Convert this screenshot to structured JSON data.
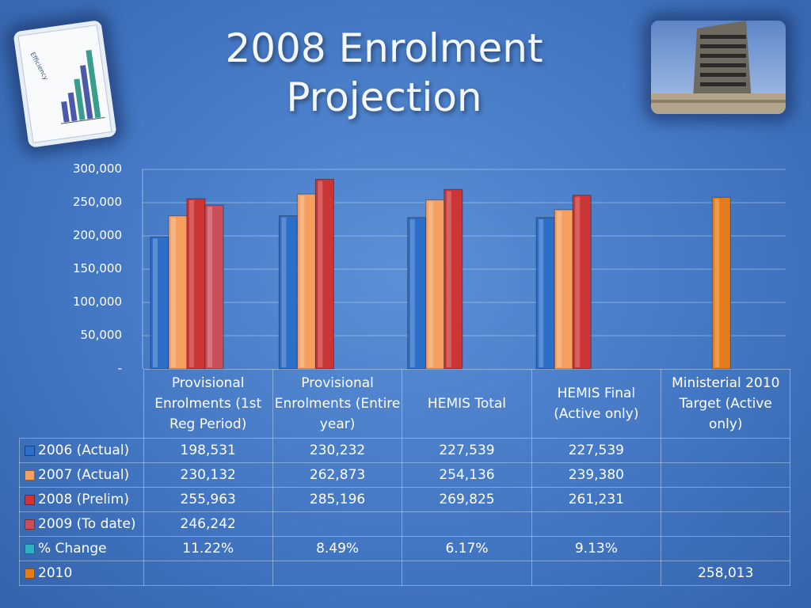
{
  "title": "2008 Enrolment Projection",
  "chart_data": {
    "type": "bar",
    "categories": [
      "Provisional Enrolments (1st Reg Period)",
      "Provisional Enrolments (Entire year)",
      "HEMIS Total",
      "HEMIS Final (Active only)",
      "Ministerial 2010 Target  (Active only)"
    ],
    "series": [
      {
        "name": "2006 (Actual)",
        "color": "#2d6ec8",
        "values": [
          198531,
          230232,
          227539,
          227539,
          null
        ],
        "labels": [
          "198,531",
          "230,232",
          "227,539",
          "227,539",
          ""
        ]
      },
      {
        "name": "2007 (Actual)",
        "color": "#f5a060",
        "values": [
          230132,
          262873,
          254136,
          239380,
          null
        ],
        "labels": [
          "230,132",
          "262,873",
          "254,136",
          "239,380",
          ""
        ]
      },
      {
        "name": "2008 (Prelim)",
        "color": "#cc3535",
        "values": [
          255963,
          285196,
          269825,
          261231,
          null
        ],
        "labels": [
          "255,963",
          "285,196",
          "269,825",
          "261,231",
          ""
        ]
      },
      {
        "name": "2009 (To date)",
        "color": "#c9505a",
        "values": [
          246242,
          null,
          null,
          null,
          null
        ],
        "labels": [
          "246,242",
          "",
          "",
          "",
          ""
        ]
      },
      {
        "name": "% Change",
        "color": "#2fb1c0",
        "values": [
          null,
          null,
          null,
          null,
          null
        ],
        "labels": [
          "11.22%",
          "8.49%",
          "6.17%",
          "9.13%",
          ""
        ]
      },
      {
        "name": "2010",
        "color": "#e57c1c",
        "values": [
          null,
          null,
          null,
          null,
          258013
        ],
        "labels": [
          "",
          "",
          "",
          "",
          "258,013"
        ]
      }
    ],
    "ylim": [
      0,
      300000
    ],
    "yticks": [
      "300,000",
      "250,000",
      "200,000",
      "150,000",
      "100,000",
      "50,000",
      "-"
    ],
    "grid": true,
    "legend": "data table"
  }
}
